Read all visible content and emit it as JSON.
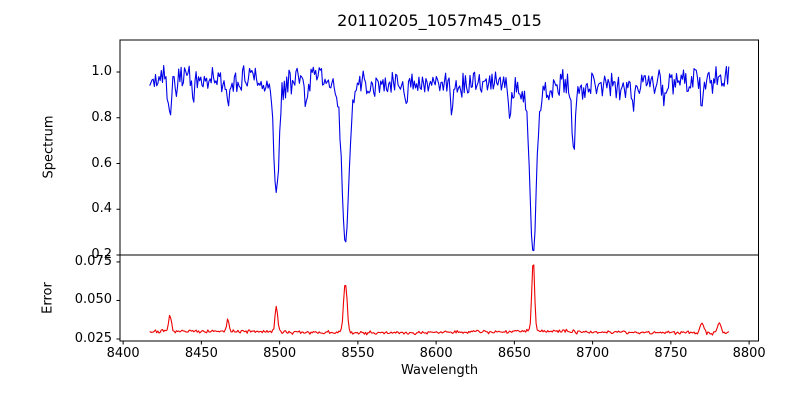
{
  "title": "20110205_1057m45_015",
  "colors": {
    "background": "#ffffff",
    "frame": "#000000",
    "text": "#000000",
    "spectrum_line": "#0000e8",
    "error_line": "#ee0000"
  },
  "noise_seed": 7,
  "chart_data": {
    "type": "line",
    "title": "20110205_1057m45_015",
    "xlabel": "Wavelength",
    "grid": false,
    "legend": null,
    "xlim": [
      8398,
      8806
    ],
    "xticks": [
      8400,
      8450,
      8500,
      8550,
      8600,
      8650,
      8700,
      8750,
      8800
    ],
    "data_x_range": [
      8417,
      8787
    ],
    "panels": [
      {
        "name": "spectrum",
        "ylabel": "Spectrum",
        "ylim": [
          0.2,
          1.14
        ],
        "yticks": [
          1.0,
          0.8,
          0.6,
          0.4,
          0.2
        ],
        "ytick_labels": [
          "1.0",
          "0.8",
          "0.6",
          "0.4",
          "0.2"
        ],
        "series": {
          "x_start": 8417,
          "x_end": 8787,
          "n_points": 500,
          "continuum": 0.958,
          "noise_amplitude": 0.06,
          "absorption_lines": [
            {
              "center": 8430,
              "depth": 0.17,
              "sigma": 1.0,
              "wing": false
            },
            {
              "center": 8445,
              "depth": 0.08,
              "sigma": 0.9,
              "wing": false
            },
            {
              "center": 8467,
              "depth": 0.12,
              "sigma": 0.9,
              "wing": false
            },
            {
              "center": 8498,
              "depth": 0.51,
              "sigma": 1.6,
              "wing": true
            },
            {
              "center": 8517,
              "depth": 0.12,
              "sigma": 0.9,
              "wing": false
            },
            {
              "center": 8542,
              "depth": 0.72,
              "sigma": 2.1,
              "wing": true
            },
            {
              "center": 8581,
              "depth": 0.1,
              "sigma": 0.9,
              "wing": false
            },
            {
              "center": 8610,
              "depth": 0.11,
              "sigma": 0.9,
              "wing": false
            },
            {
              "center": 8647,
              "depth": 0.13,
              "sigma": 0.9,
              "wing": false
            },
            {
              "center": 8662,
              "depth": 0.74,
              "sigma": 2.0,
              "wing": true
            },
            {
              "center": 8688,
              "depth": 0.27,
              "sigma": 1.2,
              "wing": false
            },
            {
              "center": 8726,
              "depth": 0.11,
              "sigma": 0.9,
              "wing": false
            },
            {
              "center": 8746,
              "depth": 0.11,
              "sigma": 0.9,
              "wing": false
            },
            {
              "center": 8770,
              "depth": 0.1,
              "sigma": 0.9,
              "wing": false
            }
          ]
        }
      },
      {
        "name": "error",
        "ylabel": "Error",
        "ylim": [
          0.0237,
          0.0795
        ],
        "yticks": [
          0.075,
          0.05,
          0.025
        ],
        "ytick_labels": [
          "0.075",
          "0.050",
          "0.025"
        ],
        "series": {
          "baseline": 0.0295,
          "noise_amplitude": 0.0011,
          "peaks": [
            {
              "center": 8430,
              "height": 0.0105,
              "sigma": 0.8
            },
            {
              "center": 8467,
              "height": 0.0075,
              "sigma": 0.7
            },
            {
              "center": 8498,
              "height": 0.016,
              "sigma": 0.9
            },
            {
              "center": 8542,
              "height": 0.033,
              "sigma": 1.1
            },
            {
              "center": 8662,
              "height": 0.0455,
              "sigma": 0.9
            },
            {
              "center": 8770,
              "height": 0.006,
              "sigma": 1.3
            },
            {
              "center": 8781,
              "height": 0.0065,
              "sigma": 1.1
            }
          ]
        }
      }
    ]
  }
}
